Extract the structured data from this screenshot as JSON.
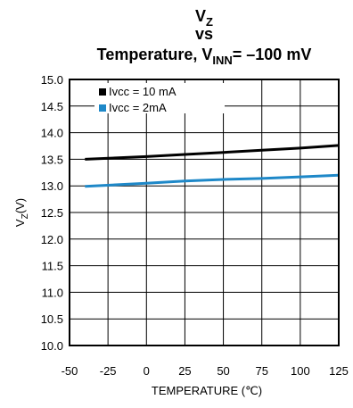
{
  "chart_data": {
    "type": "line",
    "title_lines": [
      {
        "main": "V",
        "sub": "Z"
      },
      {
        "main": "vs"
      },
      {
        "main": "Temperature, V",
        "sub": "INN",
        "tail": "= –100 mV"
      }
    ],
    "xlabel": "TEMPERATURE (℃)",
    "ylabel_main": "V",
    "ylabel_sub": "Z",
    "ylabel_tail": "(V)",
    "xlim": [
      -50,
      125
    ],
    "ylim": [
      10.0,
      15.0
    ],
    "x_ticks": [
      "-50",
      "-25",
      "0",
      "25",
      "50",
      "75",
      "100",
      "125"
    ],
    "y_ticks": [
      "10.0",
      "10.5",
      "11.0",
      "11.5",
      "12.0",
      "12.5",
      "13.0",
      "13.5",
      "14.0",
      "14.5",
      "15.0"
    ],
    "grid": true,
    "legend_position": "top-left",
    "series": [
      {
        "name": "Ivcc = 10 mA",
        "color": "#000000",
        "x": [
          -40,
          0,
          25,
          50,
          75,
          100,
          125
        ],
        "y": [
          13.5,
          13.55,
          13.59,
          13.63,
          13.67,
          13.71,
          13.76
        ]
      },
      {
        "name": "Ivcc = 2mA",
        "color": "#1e88c8",
        "x": [
          -40,
          0,
          25,
          50,
          75,
          100,
          125
        ],
        "y": [
          12.99,
          13.05,
          13.09,
          13.12,
          13.14,
          13.17,
          13.2
        ]
      }
    ]
  }
}
